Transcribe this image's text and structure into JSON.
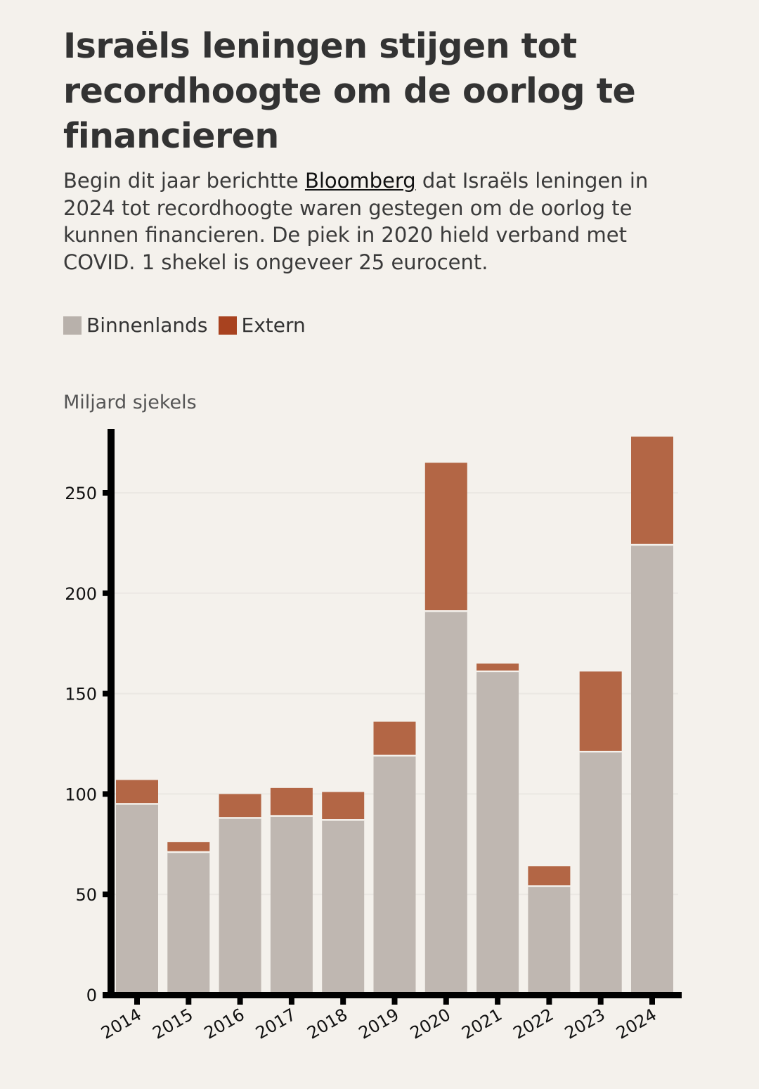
{
  "title": "Israëls leningen stijgen tot recordhoogte om de oorlog te financieren",
  "subtitle": {
    "before": "Begin dit jaar berichtte ",
    "link": "Bloomberg",
    "after": " dat Israëls leningen in 2024 tot recordhoogte waren gestegen om de oorlog te kunnen financieren. De piek in 2020 hield verband met COVID. 1 shekel is ongeveer 25 eurocent."
  },
  "colors": {
    "background": "#f4f1ec",
    "binnenlands": "#bfb7b1",
    "extern": "#b36645",
    "legend_binnenlands": "#b8b1ab",
    "legend_extern": "#a8421f"
  },
  "chart_data": {
    "type": "bar",
    "stacked": true,
    "title": "Israëls leningen stijgen tot recordhoogte om de oorlog te financieren",
    "ylabel": "Miljard sjekels",
    "xlabel": "",
    "categories": [
      "2014",
      "2015",
      "2016",
      "2017",
      "2018",
      "2019",
      "2020",
      "2021",
      "2022",
      "2023",
      "2024"
    ],
    "series": [
      {
        "name": "Binnenlands",
        "values": [
          95,
          71,
          88,
          89,
          87,
          119,
          191,
          161,
          54,
          121,
          224
        ]
      },
      {
        "name": "Extern",
        "values": [
          12,
          5,
          12,
          14,
          14,
          17,
          74,
          4,
          10,
          40,
          54
        ]
      }
    ],
    "ylim": [
      0,
      282
    ],
    "yticks": [
      0,
      50,
      100,
      150,
      200,
      250
    ],
    "ytick_labels": [
      "0",
      "50",
      "100",
      "150",
      "200",
      "250"
    ],
    "grid": true,
    "legend_placement": "top-left"
  }
}
